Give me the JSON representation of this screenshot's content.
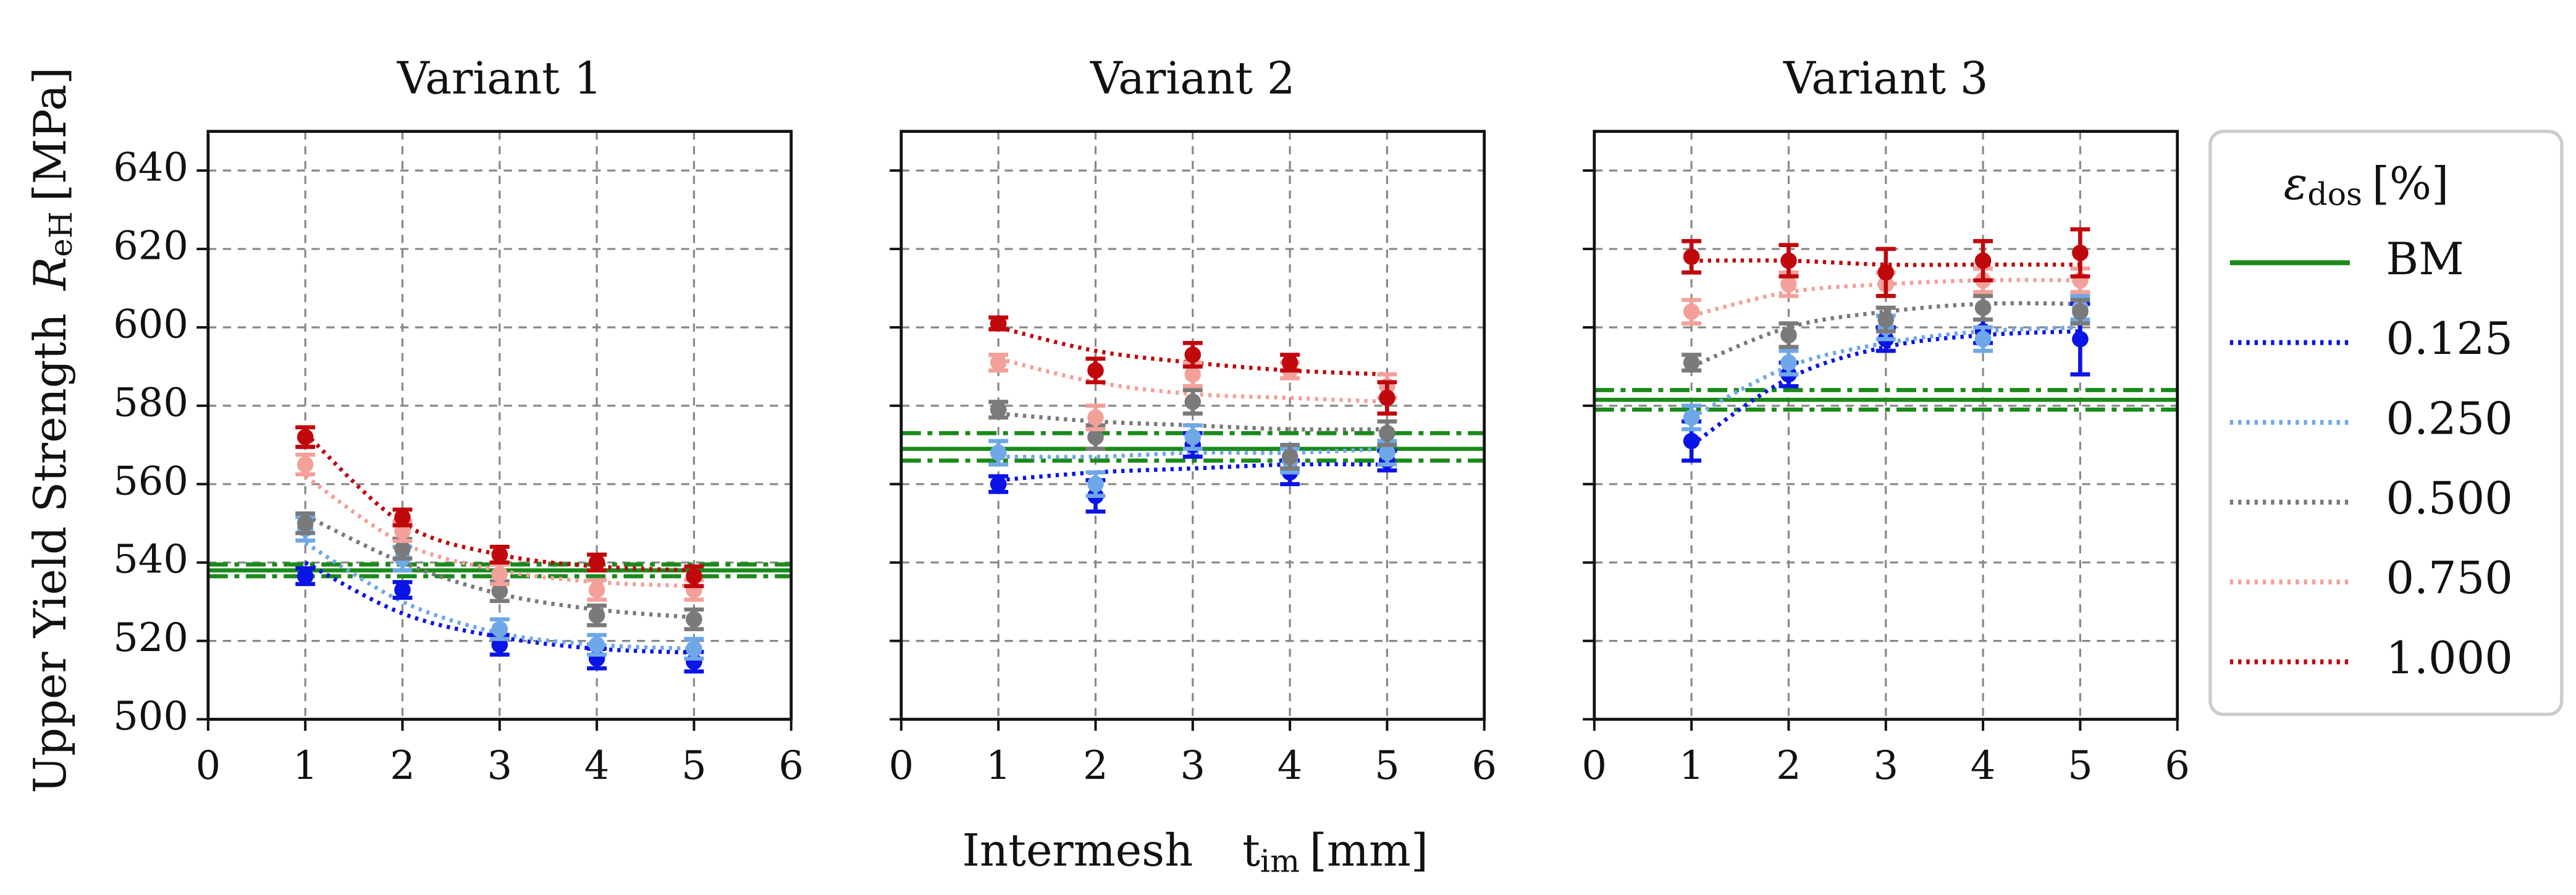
{
  "figure": {
    "ylabel": {
      "text": "Upper Yield Strength",
      "symbol": "R",
      "subscript": "eH",
      "unit": "[MPa]"
    },
    "xlabel": {
      "text": "Intermesh",
      "symbol": "t",
      "subscript": "im",
      "unit": "[mm]"
    },
    "legend": {
      "symbol": "ε",
      "subscript": "dos",
      "unit": "[%]",
      "position": "right"
    }
  },
  "chart_data": [
    {
      "type": "scatter",
      "title": "Variant 1",
      "xlim": [
        0,
        6
      ],
      "xticks": [
        0,
        1,
        2,
        3,
        4,
        5,
        6
      ],
      "ylim": [
        500,
        650
      ],
      "yticks": [
        500,
        520,
        540,
        560,
        580,
        600,
        620,
        640
      ],
      "ytick_labels": true,
      "grid": true,
      "x": [
        1,
        2,
        3,
        4,
        5
      ],
      "bm": {
        "name": "BM",
        "color": "#1a8a1a",
        "value": 538,
        "band": [
          536.5,
          539.5
        ]
      },
      "series": [
        {
          "name": "0.125",
          "color": "#0a14e6",
          "values": [
            536.5,
            533,
            519,
            515.5,
            514.7
          ],
          "errors": [
            2,
            2,
            2.5,
            2.5,
            2.5
          ],
          "fit": [
            540,
            527,
            521,
            518,
            517
          ]
        },
        {
          "name": "0.250",
          "color": "#6fa8e8",
          "values": [
            548.6,
            541,
            523,
            519,
            518
          ],
          "errors": [
            3,
            3,
            2.5,
            2.5,
            2.5
          ],
          "fit": [
            545,
            530,
            522,
            519,
            518
          ]
        },
        {
          "name": "0.500",
          "color": "#7a7a7a",
          "values": [
            550,
            543.5,
            532.7,
            526.5,
            525.5
          ],
          "errors": [
            2.5,
            2.5,
            2.5,
            2.5,
            2.5
          ],
          "fit": [
            552,
            540,
            532,
            528,
            526
          ]
        },
        {
          "name": "0.750",
          "color": "#f4a09a",
          "values": [
            565,
            548,
            537,
            533,
            533
          ],
          "errors": [
            2.5,
            2.5,
            2.5,
            2.5,
            2.5
          ],
          "fit": [
            562,
            545,
            538,
            535,
            534
          ]
        },
        {
          "name": "1.000",
          "color": "#c0080c",
          "values": [
            572,
            551.5,
            542,
            540,
            536.5
          ],
          "errors": [
            2.5,
            2,
            2,
            2,
            2.5
          ],
          "fit": [
            573,
            550,
            542,
            539,
            538
          ]
        }
      ]
    },
    {
      "type": "scatter",
      "title": "Variant 2",
      "xlim": [
        0,
        6
      ],
      "xticks": [
        0,
        1,
        2,
        3,
        4,
        5,
        6
      ],
      "ylim": [
        500,
        650
      ],
      "yticks": [
        500,
        520,
        540,
        560,
        580,
        600,
        620,
        640
      ],
      "ytick_labels": false,
      "grid": true,
      "x": [
        1,
        2,
        3,
        4,
        5
      ],
      "bm": {
        "name": "BM",
        "color": "#1a8a1a",
        "value": 569,
        "band": [
          566,
          573
        ]
      },
      "series": [
        {
          "name": "0.125",
          "color": "#0a14e6",
          "values": [
            560,
            557,
            570,
            563,
            566
          ],
          "errors": [
            2,
            4,
            3,
            3,
            2.5
          ],
          "fit": [
            561,
            563,
            564,
            565,
            565
          ]
        },
        {
          "name": "0.250",
          "color": "#6fa8e8",
          "values": [
            568,
            560,
            572,
            566,
            568
          ],
          "errors": [
            3,
            3,
            3,
            3,
            3
          ],
          "fit": [
            567,
            567,
            568,
            568,
            569
          ]
        },
        {
          "name": "0.500",
          "color": "#7a7a7a",
          "values": [
            579,
            572,
            581,
            567,
            573
          ],
          "errors": [
            2,
            3,
            3,
            3,
            3
          ],
          "fit": [
            578,
            576,
            575,
            574,
            574
          ]
        },
        {
          "name": "0.750",
          "color": "#f4a09a",
          "values": [
            591,
            577,
            588,
            589,
            585
          ],
          "errors": [
            2,
            3,
            3,
            2,
            3
          ],
          "fit": [
            592,
            586,
            583,
            582,
            581
          ]
        },
        {
          "name": "1.000",
          "color": "#c0080c",
          "values": [
            601,
            589,
            593,
            591,
            582
          ],
          "errors": [
            1.5,
            3,
            3,
            2,
            4
          ],
          "fit": [
            600,
            594,
            591,
            589,
            588
          ]
        }
      ]
    },
    {
      "type": "scatter",
      "title": "Variant 3",
      "xlim": [
        0,
        6
      ],
      "xticks": [
        0,
        1,
        2,
        3,
        4,
        5,
        6
      ],
      "ylim": [
        500,
        650
      ],
      "yticks": [
        500,
        520,
        540,
        560,
        580,
        600,
        620,
        640
      ],
      "ytick_labels": false,
      "grid": true,
      "x": [
        1,
        2,
        3,
        4,
        5
      ],
      "bm": {
        "name": "BM",
        "color": "#1a8a1a",
        "value": 581.5,
        "band": [
          579,
          584
        ]
      },
      "series": [
        {
          "name": "0.125",
          "color": "#0a14e6",
          "values": [
            571,
            588,
            597,
            599,
            597
          ],
          "errors": [
            5,
            3,
            3,
            3,
            9
          ],
          "fit": [
            570,
            587,
            595,
            598,
            599
          ]
        },
        {
          "name": "0.250",
          "color": "#6fa8e8",
          "values": [
            577,
            591,
            600,
            597,
            605
          ],
          "errors": [
            3,
            3,
            3,
            3,
            3
          ],
          "fit": [
            577,
            590,
            596,
            599,
            600
          ]
        },
        {
          "name": "0.500",
          "color": "#7a7a7a",
          "values": [
            591,
            598,
            602,
            605,
            604
          ],
          "errors": [
            2,
            3,
            3,
            3,
            3
          ],
          "fit": [
            590,
            600,
            604,
            606,
            606
          ]
        },
        {
          "name": "0.750",
          "color": "#f4a09a",
          "values": [
            604,
            611,
            611,
            612,
            612
          ],
          "errors": [
            3,
            3,
            3,
            3,
            3
          ],
          "fit": [
            603,
            609,
            611,
            612,
            612
          ]
        },
        {
          "name": "1.000",
          "color": "#c0080c",
          "values": [
            618,
            617,
            614,
            617,
            619
          ],
          "errors": [
            4,
            4,
            6,
            5,
            6
          ],
          "fit": [
            617,
            617,
            616,
            616,
            616
          ]
        }
      ]
    }
  ]
}
